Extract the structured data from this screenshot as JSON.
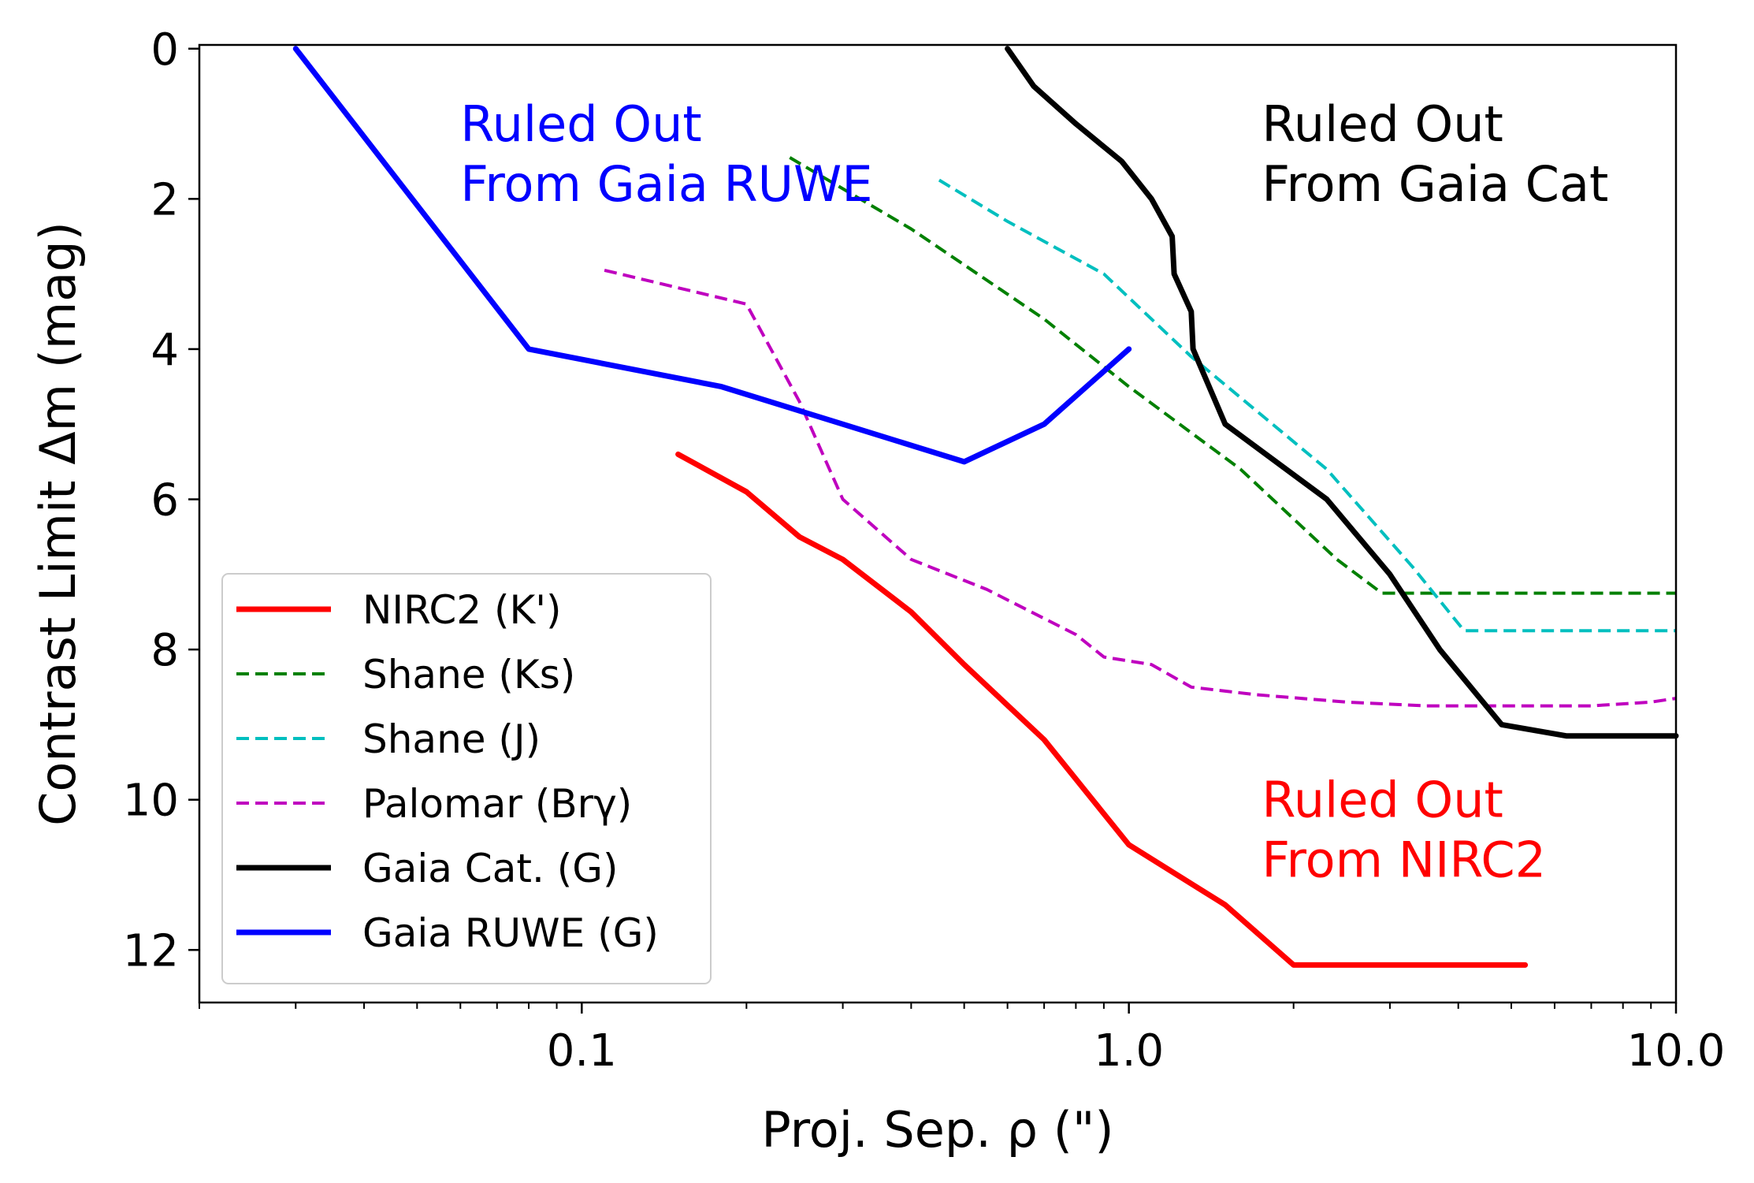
{
  "chart_data": {
    "type": "line",
    "xscale": "log",
    "xlim": [
      0.02,
      10.0
    ],
    "ylim": [
      12.7,
      -0.05
    ],
    "xlabel": "Proj. Sep. ρ (\")",
    "ylabel": "Contrast Limit Δm (mag)",
    "xticks": [
      0.1,
      1.0,
      10.0
    ],
    "xtick_labels": [
      "0.1",
      "1.0",
      "10.0"
    ],
    "yticks": [
      0,
      2,
      4,
      6,
      8,
      10,
      12
    ],
    "ytick_labels": [
      "0",
      "2",
      "4",
      "6",
      "8",
      "10",
      "12"
    ],
    "legend_position": "lower-left",
    "series": [
      {
        "name": "NIRC2 (K')",
        "color": "#ff0000",
        "style": "solid",
        "x": [
          0.15,
          0.2,
          0.25,
          0.3,
          0.4,
          0.5,
          0.7,
          1.0,
          1.5,
          2.0,
          3.0,
          5.3
        ],
        "y": [
          5.4,
          5.9,
          6.5,
          6.8,
          7.5,
          8.2,
          9.2,
          10.6,
          11.4,
          12.2,
          12.2,
          12.2
        ]
      },
      {
        "name": "Shane (Ks)",
        "color": "#008000",
        "style": "dashed",
        "x": [
          0.24,
          0.4,
          0.7,
          1.0,
          1.6,
          2.4,
          2.9,
          3.5,
          5.0,
          10.0
        ],
        "y": [
          1.45,
          2.4,
          3.6,
          4.5,
          5.6,
          6.8,
          7.25,
          7.25,
          7.25,
          7.25
        ]
      },
      {
        "name": "Shane (J)",
        "color": "#00bfbf",
        "style": "dashed",
        "x": [
          0.45,
          0.6,
          0.9,
          1.3,
          2.3,
          3.3,
          4.1,
          6.0,
          10.0
        ],
        "y": [
          1.75,
          2.3,
          3.0,
          4.1,
          5.6,
          6.9,
          7.75,
          7.75,
          7.75
        ]
      },
      {
        "name": "Palomar (Brγ)",
        "color": "#bf00bf",
        "style": "dashed",
        "x": [
          0.11,
          0.2,
          0.25,
          0.3,
          0.4,
          0.55,
          0.8,
          0.9,
          1.1,
          1.3,
          1.7,
          2.5,
          3.5,
          5.0,
          7.0,
          9.0,
          10.0
        ],
        "y": [
          2.95,
          3.4,
          4.7,
          6.0,
          6.8,
          7.2,
          7.8,
          8.1,
          8.2,
          8.5,
          8.6,
          8.7,
          8.75,
          8.75,
          8.75,
          8.7,
          8.65
        ]
      },
      {
        "name": "Gaia Cat. (G)",
        "color": "#000000",
        "style": "solid",
        "x": [
          0.6,
          0.67,
          0.8,
          0.97,
          1.1,
          1.2,
          1.21,
          1.3,
          1.31,
          1.5,
          2.3,
          3.0,
          3.7,
          4.8,
          6.3,
          10.0
        ],
        "y": [
          0.0,
          0.5,
          1.0,
          1.5,
          2.0,
          2.5,
          3.0,
          3.5,
          4.0,
          5.0,
          6.0,
          7.0,
          8.0,
          9.0,
          9.15,
          9.15
        ]
      },
      {
        "name": "Gaia RUWE (G)",
        "color": "#0000ff",
        "style": "solid",
        "x": [
          0.03,
          0.08,
          0.18,
          0.3,
          0.5,
          0.7,
          1.0
        ],
        "y": [
          0.0,
          4.0,
          4.5,
          5.0,
          5.5,
          5.0,
          4.0
        ]
      }
    ],
    "annotations": [
      {
        "lines": [
          "Ruled Out",
          "From Gaia RUWE"
        ],
        "color": "#0000ff",
        "x": 0.06,
        "y": 1.0
      },
      {
        "lines": [
          "Ruled Out",
          "From Gaia Cat"
        ],
        "color": "#000000",
        "x": 1.75,
        "y": 1.0
      },
      {
        "lines": [
          "Ruled Out",
          "From NIRC2"
        ],
        "color": "#ff0000",
        "x": 1.75,
        "y": 10.0
      }
    ]
  }
}
